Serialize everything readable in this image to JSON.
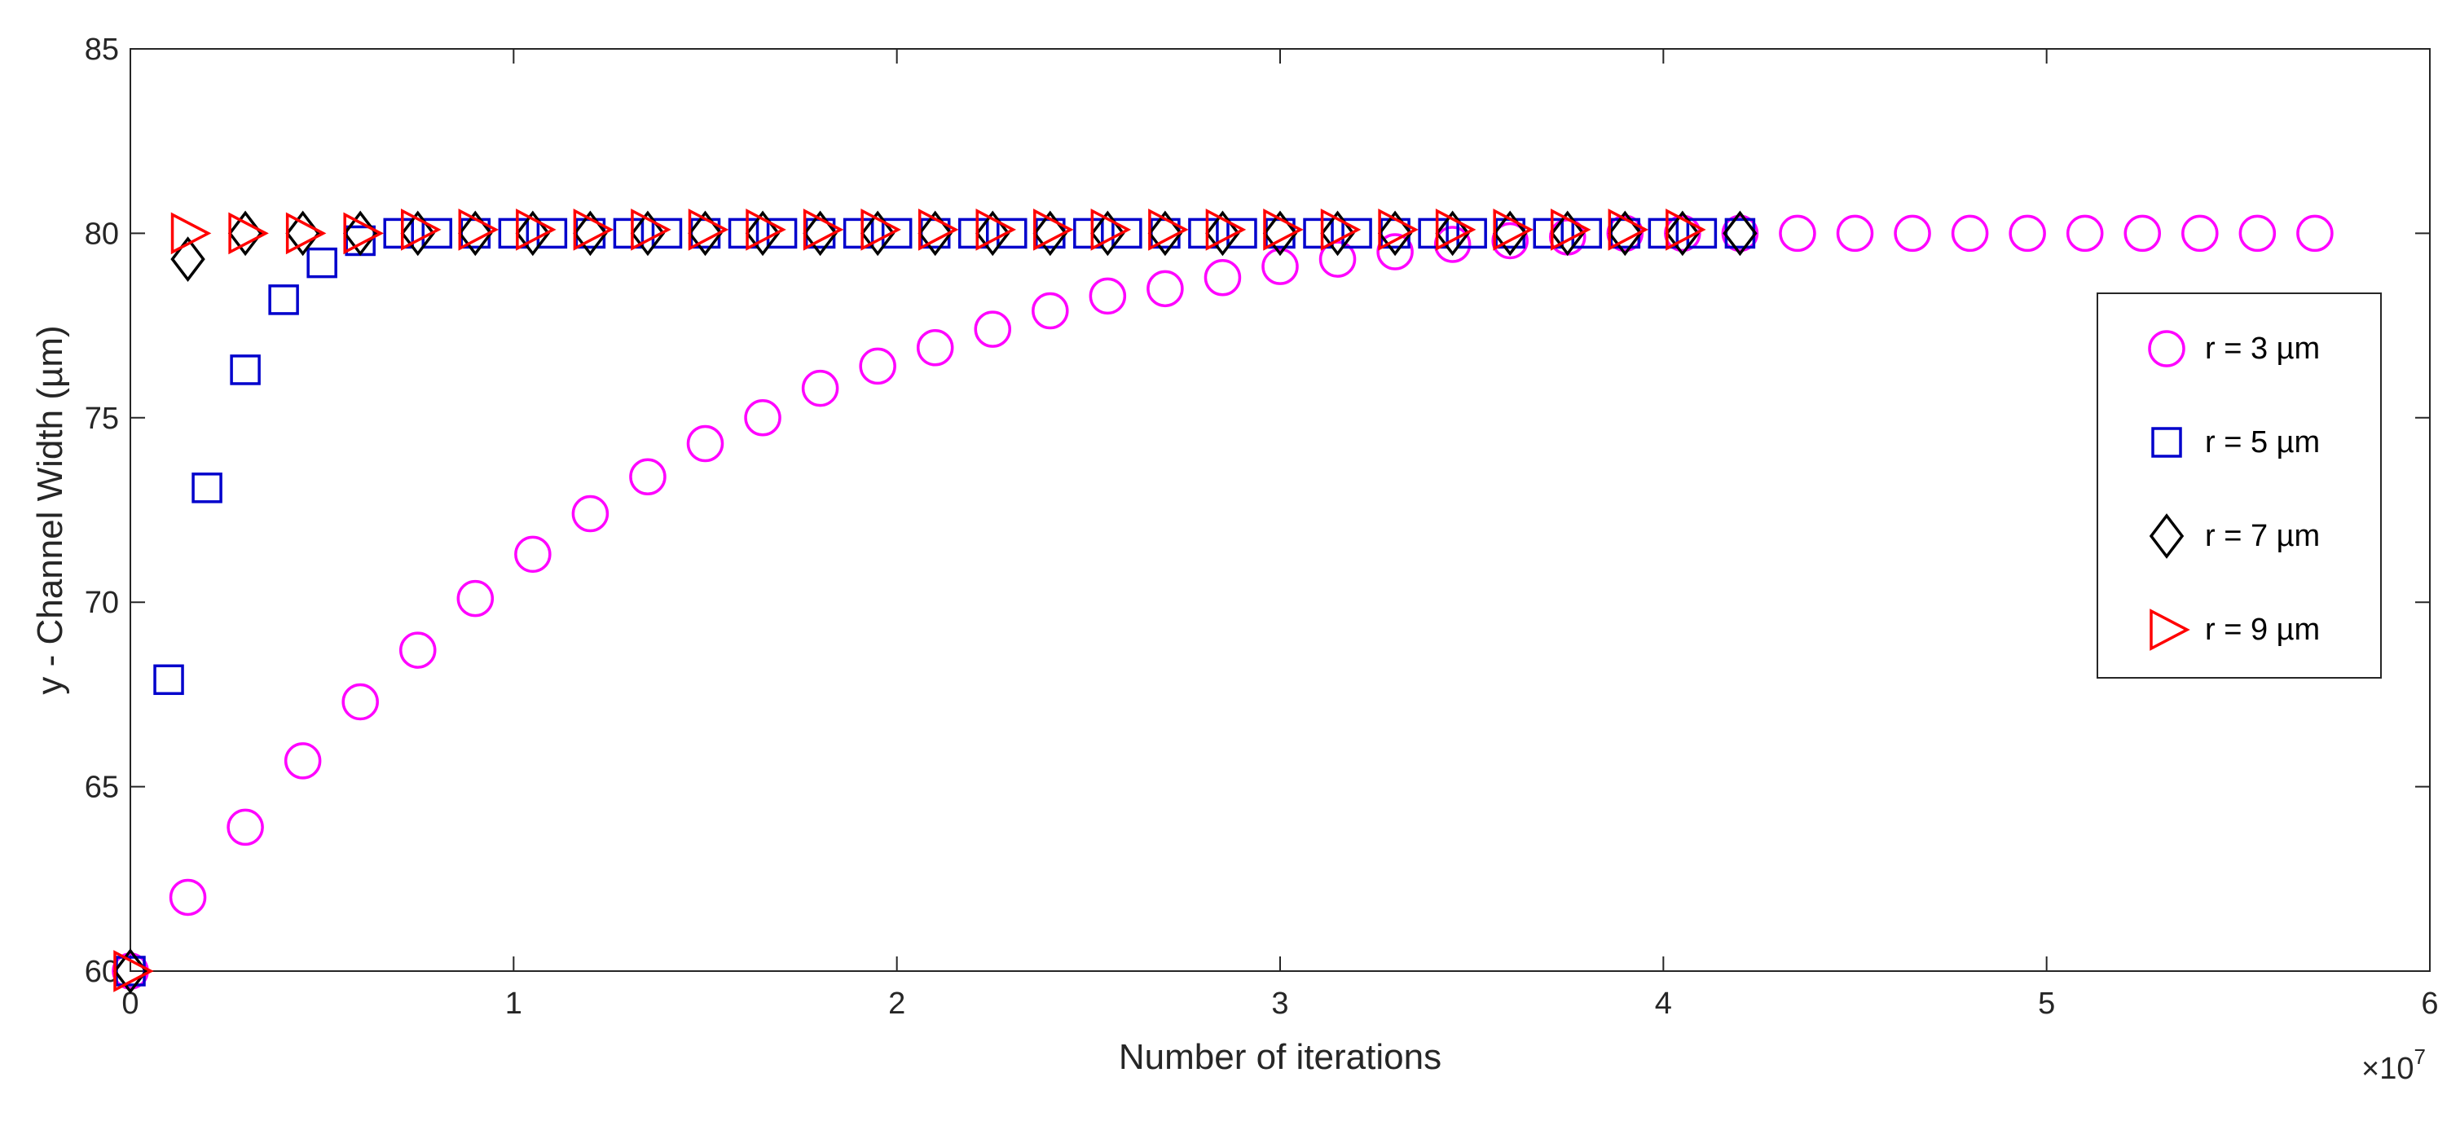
{
  "chart_data": {
    "type": "scatter",
    "xlabel": "Number of iterations",
    "ylabel": "y - Channel Width (µm)",
    "x_multiplier_label": "×10",
    "x_multiplier_exponent": "7",
    "xlim": [
      0,
      6
    ],
    "ylim": [
      60,
      85
    ],
    "x_ticks": [
      "0",
      "1",
      "2",
      "3",
      "4",
      "5",
      "6"
    ],
    "y_ticks": [
      "60",
      "65",
      "70",
      "75",
      "80",
      "85"
    ],
    "legend_position": "right",
    "grid": false,
    "series": [
      {
        "name": "r = 3 µm",
        "marker": "circle",
        "color": "#FF00FF",
        "x": [
          0,
          0.15,
          0.3,
          0.45,
          0.6,
          0.75,
          0.9,
          1.05,
          1.2,
          1.35,
          1.5,
          1.65,
          1.8,
          1.95,
          2.1,
          2.25,
          2.4,
          2.55,
          2.7,
          2.85,
          3.0,
          3.15,
          3.3,
          3.45,
          3.6,
          3.75,
          3.9,
          4.05,
          4.2,
          4.35,
          4.5,
          4.65,
          4.8,
          4.95,
          5.1,
          5.25,
          5.4,
          5.55,
          5.7
        ],
        "y": [
          60.0,
          62.0,
          63.9,
          65.7,
          67.3,
          68.7,
          70.1,
          71.3,
          72.4,
          73.4,
          74.3,
          75.0,
          75.8,
          76.4,
          76.9,
          77.4,
          77.9,
          78.3,
          78.5,
          78.8,
          79.1,
          79.3,
          79.5,
          79.7,
          79.8,
          79.9,
          80.0,
          80.0,
          80.0,
          80.0,
          80.0,
          80.0,
          80.0,
          80.0,
          80.0,
          80.0,
          80.0,
          80.0,
          80.0
        ]
      },
      {
        "name": "r = 5 µm",
        "marker": "square",
        "color": "#0000CC",
        "x": [
          0,
          0.1,
          0.2,
          0.3,
          0.4,
          0.5,
          0.6,
          0.7,
          0.8,
          0.9,
          1.0,
          1.1,
          1.2,
          1.3,
          1.4,
          1.5,
          1.6,
          1.7,
          1.8,
          1.9,
          2.0,
          2.1,
          2.2,
          2.3,
          2.4,
          2.5,
          2.6,
          2.7,
          2.8,
          2.9,
          3.0,
          3.1,
          3.2,
          3.3,
          3.4,
          3.5,
          3.6,
          3.7,
          3.8,
          3.9,
          4.0,
          4.1,
          4.2
        ],
        "y": [
          60.0,
          67.9,
          73.1,
          76.3,
          78.2,
          79.2,
          79.8,
          80.0,
          80.0,
          80.0,
          80.0,
          80.0,
          80.0,
          80.0,
          80.0,
          80.0,
          80.0,
          80.0,
          80.0,
          80.0,
          80.0,
          80.0,
          80.0,
          80.0,
          80.0,
          80.0,
          80.0,
          80.0,
          80.0,
          80.0,
          80.0,
          80.0,
          80.0,
          80.0,
          80.0,
          80.0,
          80.0,
          80.0,
          80.0,
          80.0,
          80.0,
          80.0,
          80.0
        ]
      },
      {
        "name": "r = 7 µm",
        "marker": "diamond",
        "color": "#000000",
        "x": [
          0,
          0.15,
          0.3,
          0.45,
          0.6,
          0.75,
          0.9,
          1.05,
          1.2,
          1.35,
          1.5,
          1.65,
          1.8,
          1.95,
          2.1,
          2.25,
          2.4,
          2.55,
          2.7,
          2.85,
          3.0,
          3.15,
          3.3,
          3.45,
          3.6,
          3.75,
          3.9,
          4.05,
          4.2
        ],
        "y": [
          60.0,
          79.3,
          80.0,
          80.0,
          80.0,
          80.0,
          80.0,
          80.0,
          80.0,
          80.0,
          80.0,
          80.0,
          80.0,
          80.0,
          80.0,
          80.0,
          80.0,
          80.0,
          80.0,
          80.0,
          80.0,
          80.0,
          80.0,
          80.0,
          80.0,
          80.0,
          80.0,
          80.0,
          80.0
        ]
      },
      {
        "name": "r = 9 µm",
        "marker": "triangle-right",
        "color": "#FF0000",
        "x": [
          0,
          0.15,
          0.3,
          0.45,
          0.6,
          0.75,
          0.9,
          1.05,
          1.2,
          1.35,
          1.5,
          1.65,
          1.8,
          1.95,
          2.1,
          2.25,
          2.4,
          2.55,
          2.7,
          2.85,
          3.0,
          3.15,
          3.3,
          3.45,
          3.6,
          3.75,
          3.9,
          4.05
        ],
        "y": [
          60.0,
          80.0,
          80.0,
          80.0,
          80.0,
          80.1,
          80.1,
          80.1,
          80.1,
          80.1,
          80.1,
          80.1,
          80.1,
          80.1,
          80.1,
          80.1,
          80.1,
          80.1,
          80.1,
          80.1,
          80.1,
          80.1,
          80.1,
          80.1,
          80.1,
          80.1,
          80.1,
          80.1
        ]
      }
    ]
  }
}
